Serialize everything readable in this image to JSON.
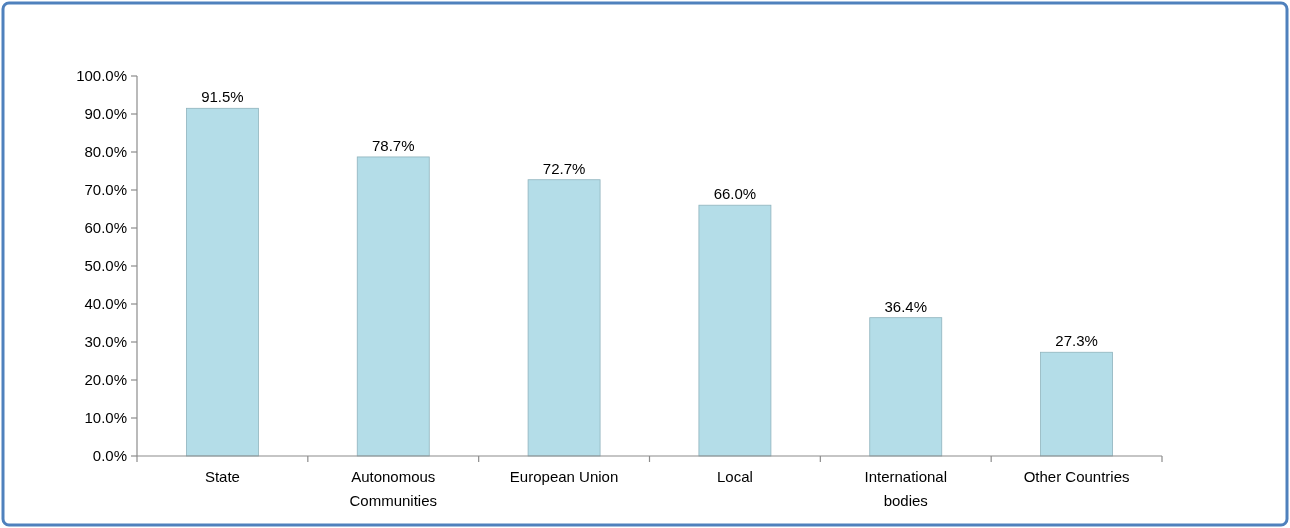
{
  "chart_data": {
    "type": "bar",
    "categories": [
      "State",
      "Autonomous Communities",
      "European Union",
      "Local",
      "International bodies",
      "Other Countries"
    ],
    "values": [
      91.5,
      78.7,
      72.7,
      66.0,
      36.4,
      27.3
    ],
    "value_labels": [
      "91.5%",
      "78.7%",
      "72.7%",
      "66.0%",
      "36.4%",
      "27.3%"
    ],
    "color": "#b4dde8",
    "ylim": [
      0,
      100
    ],
    "yticks": [
      {
        "value": 0,
        "label": "0.0%"
      },
      {
        "value": 10,
        "label": "10.0%"
      },
      {
        "value": 20,
        "label": "20.0%"
      },
      {
        "value": 30,
        "label": "30.0%"
      },
      {
        "value": 40,
        "label": "40.0%"
      },
      {
        "value": 50,
        "label": "50.0%"
      },
      {
        "value": 60,
        "label": "60.0%"
      },
      {
        "value": 70,
        "label": "70.0%"
      },
      {
        "value": 80,
        "label": "80.0%"
      },
      {
        "value": 90,
        "label": "90.0%"
      },
      {
        "value": 100,
        "label": "100.0%"
      }
    ]
  }
}
